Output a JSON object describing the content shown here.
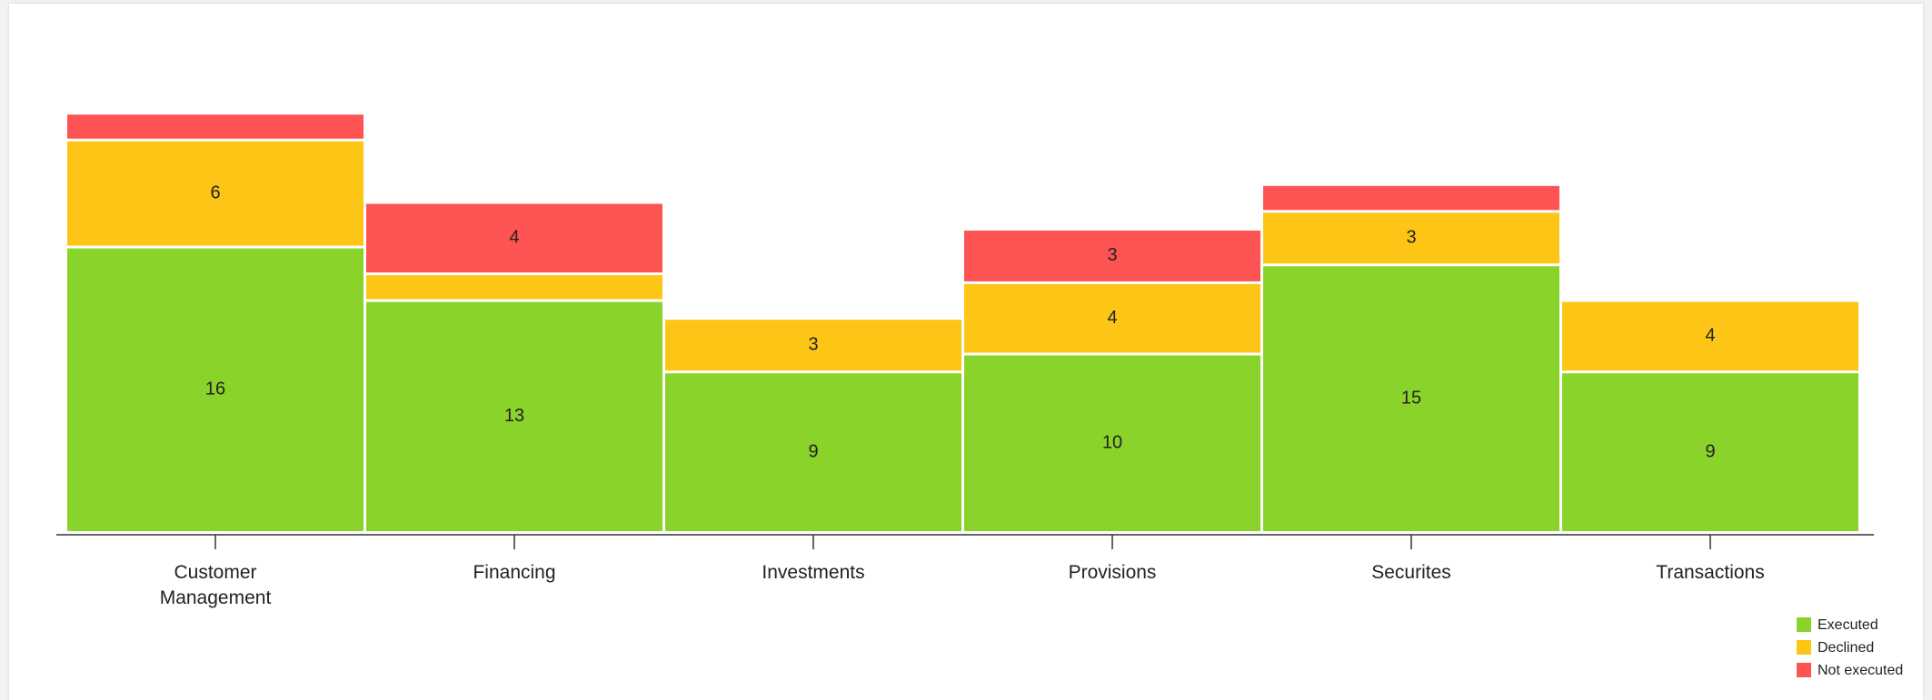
{
  "chart_data": {
    "type": "bar",
    "stacked": true,
    "categories": [
      "Customer Management",
      "Financing",
      "Investments",
      "Provisions",
      "Securites",
      "Transactions"
    ],
    "category_lines": [
      [
        "Customer",
        "Management"
      ],
      [
        "Financing"
      ],
      [
        "Investments"
      ],
      [
        "Provisions"
      ],
      [
        "Securites"
      ],
      [
        "Transactions"
      ]
    ],
    "series": [
      {
        "name": "Executed",
        "color": "#8ad32a",
        "values": [
          16,
          13,
          9,
          10,
          15,
          9
        ],
        "labels": [
          "16",
          "13",
          "9",
          "10",
          "15",
          "9"
        ]
      },
      {
        "name": "Declined",
        "color": "#fdc516",
        "values": [
          6,
          1.5,
          3,
          4,
          3,
          4
        ],
        "labels": [
          "6",
          "",
          "3",
          "4",
          "3",
          "4"
        ]
      },
      {
        "name": "Not executed",
        "color": "#fe5353",
        "values": [
          1.5,
          4,
          0,
          3,
          1.5,
          0
        ],
        "labels": [
          "",
          "4",
          "",
          "3",
          "",
          ""
        ]
      }
    ],
    "ylim": [
      0,
      24
    ],
    "grid": false,
    "legend_position": "bottom-right"
  }
}
